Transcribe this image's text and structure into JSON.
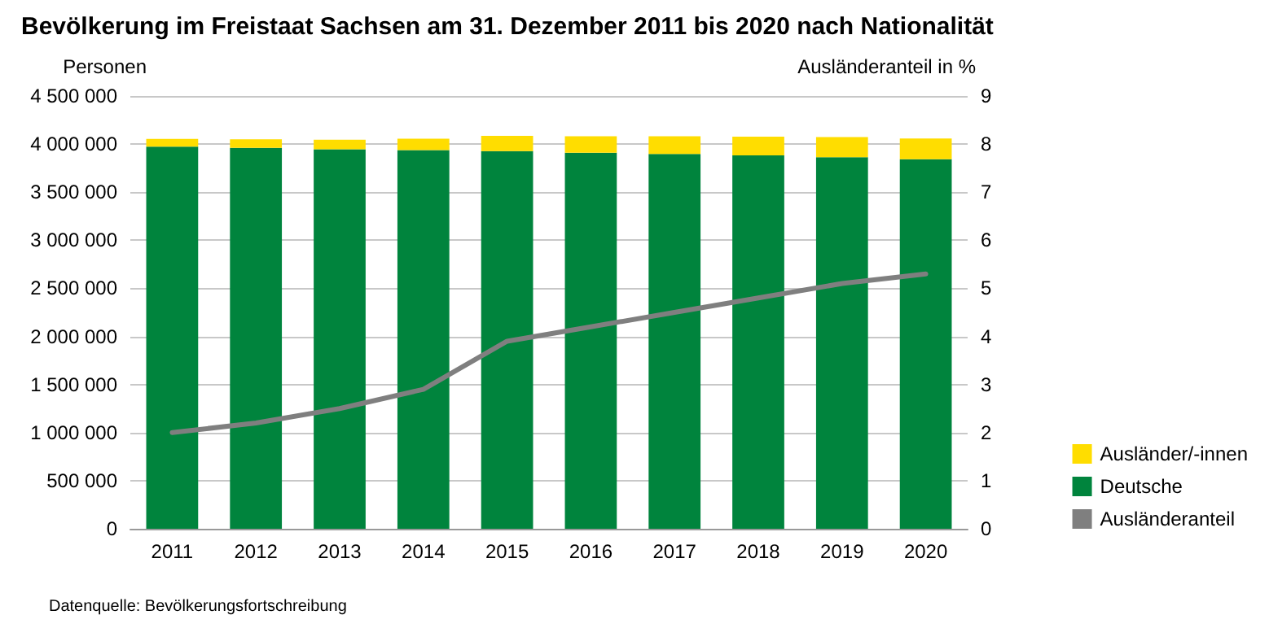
{
  "chart_data": {
    "type": "bar",
    "title": "Bevölkerung im Freistaat Sachsen am 31. Dezember 2011 bis 2020 nach Nationalität",
    "ylabel": "Personen",
    "y2label": "Ausländeranteil in %",
    "categories": [
      "2011",
      "2012",
      "2013",
      "2014",
      "2015",
      "2016",
      "2017",
      "2018",
      "2019",
      "2020"
    ],
    "stacked": true,
    "series": [
      {
        "name": "Deutsche",
        "color": "#00843d",
        "values": [
          3973000,
          3961000,
          3945000,
          3937000,
          3926000,
          3911000,
          3897000,
          3882000,
          3864000,
          3842000
        ]
      },
      {
        "name": "Ausländer/-innen",
        "color": "#ffdd00",
        "values": [
          81000,
          89000,
          101000,
          118000,
          159000,
          171000,
          184000,
          196000,
          208000,
          215000
        ]
      },
      {
        "name": "Ausländeranteil",
        "type": "line",
        "axis": "y2",
        "color": "#7f7f7f",
        "marker": "none",
        "line_style": "solid",
        "values": [
          2.0,
          2.2,
          2.5,
          2.9,
          3.9,
          4.2,
          4.5,
          4.8,
          5.1,
          5.3
        ]
      }
    ],
    "ylim": [
      0,
      4500000
    ],
    "yticks": [
      {
        "value": 0,
        "label": "0"
      },
      {
        "value": 500000,
        "label": "500 000"
      },
      {
        "value": 1000000,
        "label": "1 000 000"
      },
      {
        "value": 1500000,
        "label": "1 500 000"
      },
      {
        "value": 2000000,
        "label": "2 000 000"
      },
      {
        "value": 2500000,
        "label": "2 500 000"
      },
      {
        "value": 3000000,
        "label": "3 000 000"
      },
      {
        "value": 3500000,
        "label": "3 500 000"
      },
      {
        "value": 4000000,
        "label": "4 000 000"
      },
      {
        "value": 4500000,
        "label": "4 500 000"
      }
    ],
    "y2lim": [
      0,
      9
    ],
    "y2ticks": [
      0,
      1,
      2,
      3,
      4,
      5,
      6,
      7,
      8,
      9
    ],
    "grid": "y",
    "legend": "right",
    "annotations": [
      "Datenquelle: Bevölkerungsfortschreibung"
    ]
  }
}
